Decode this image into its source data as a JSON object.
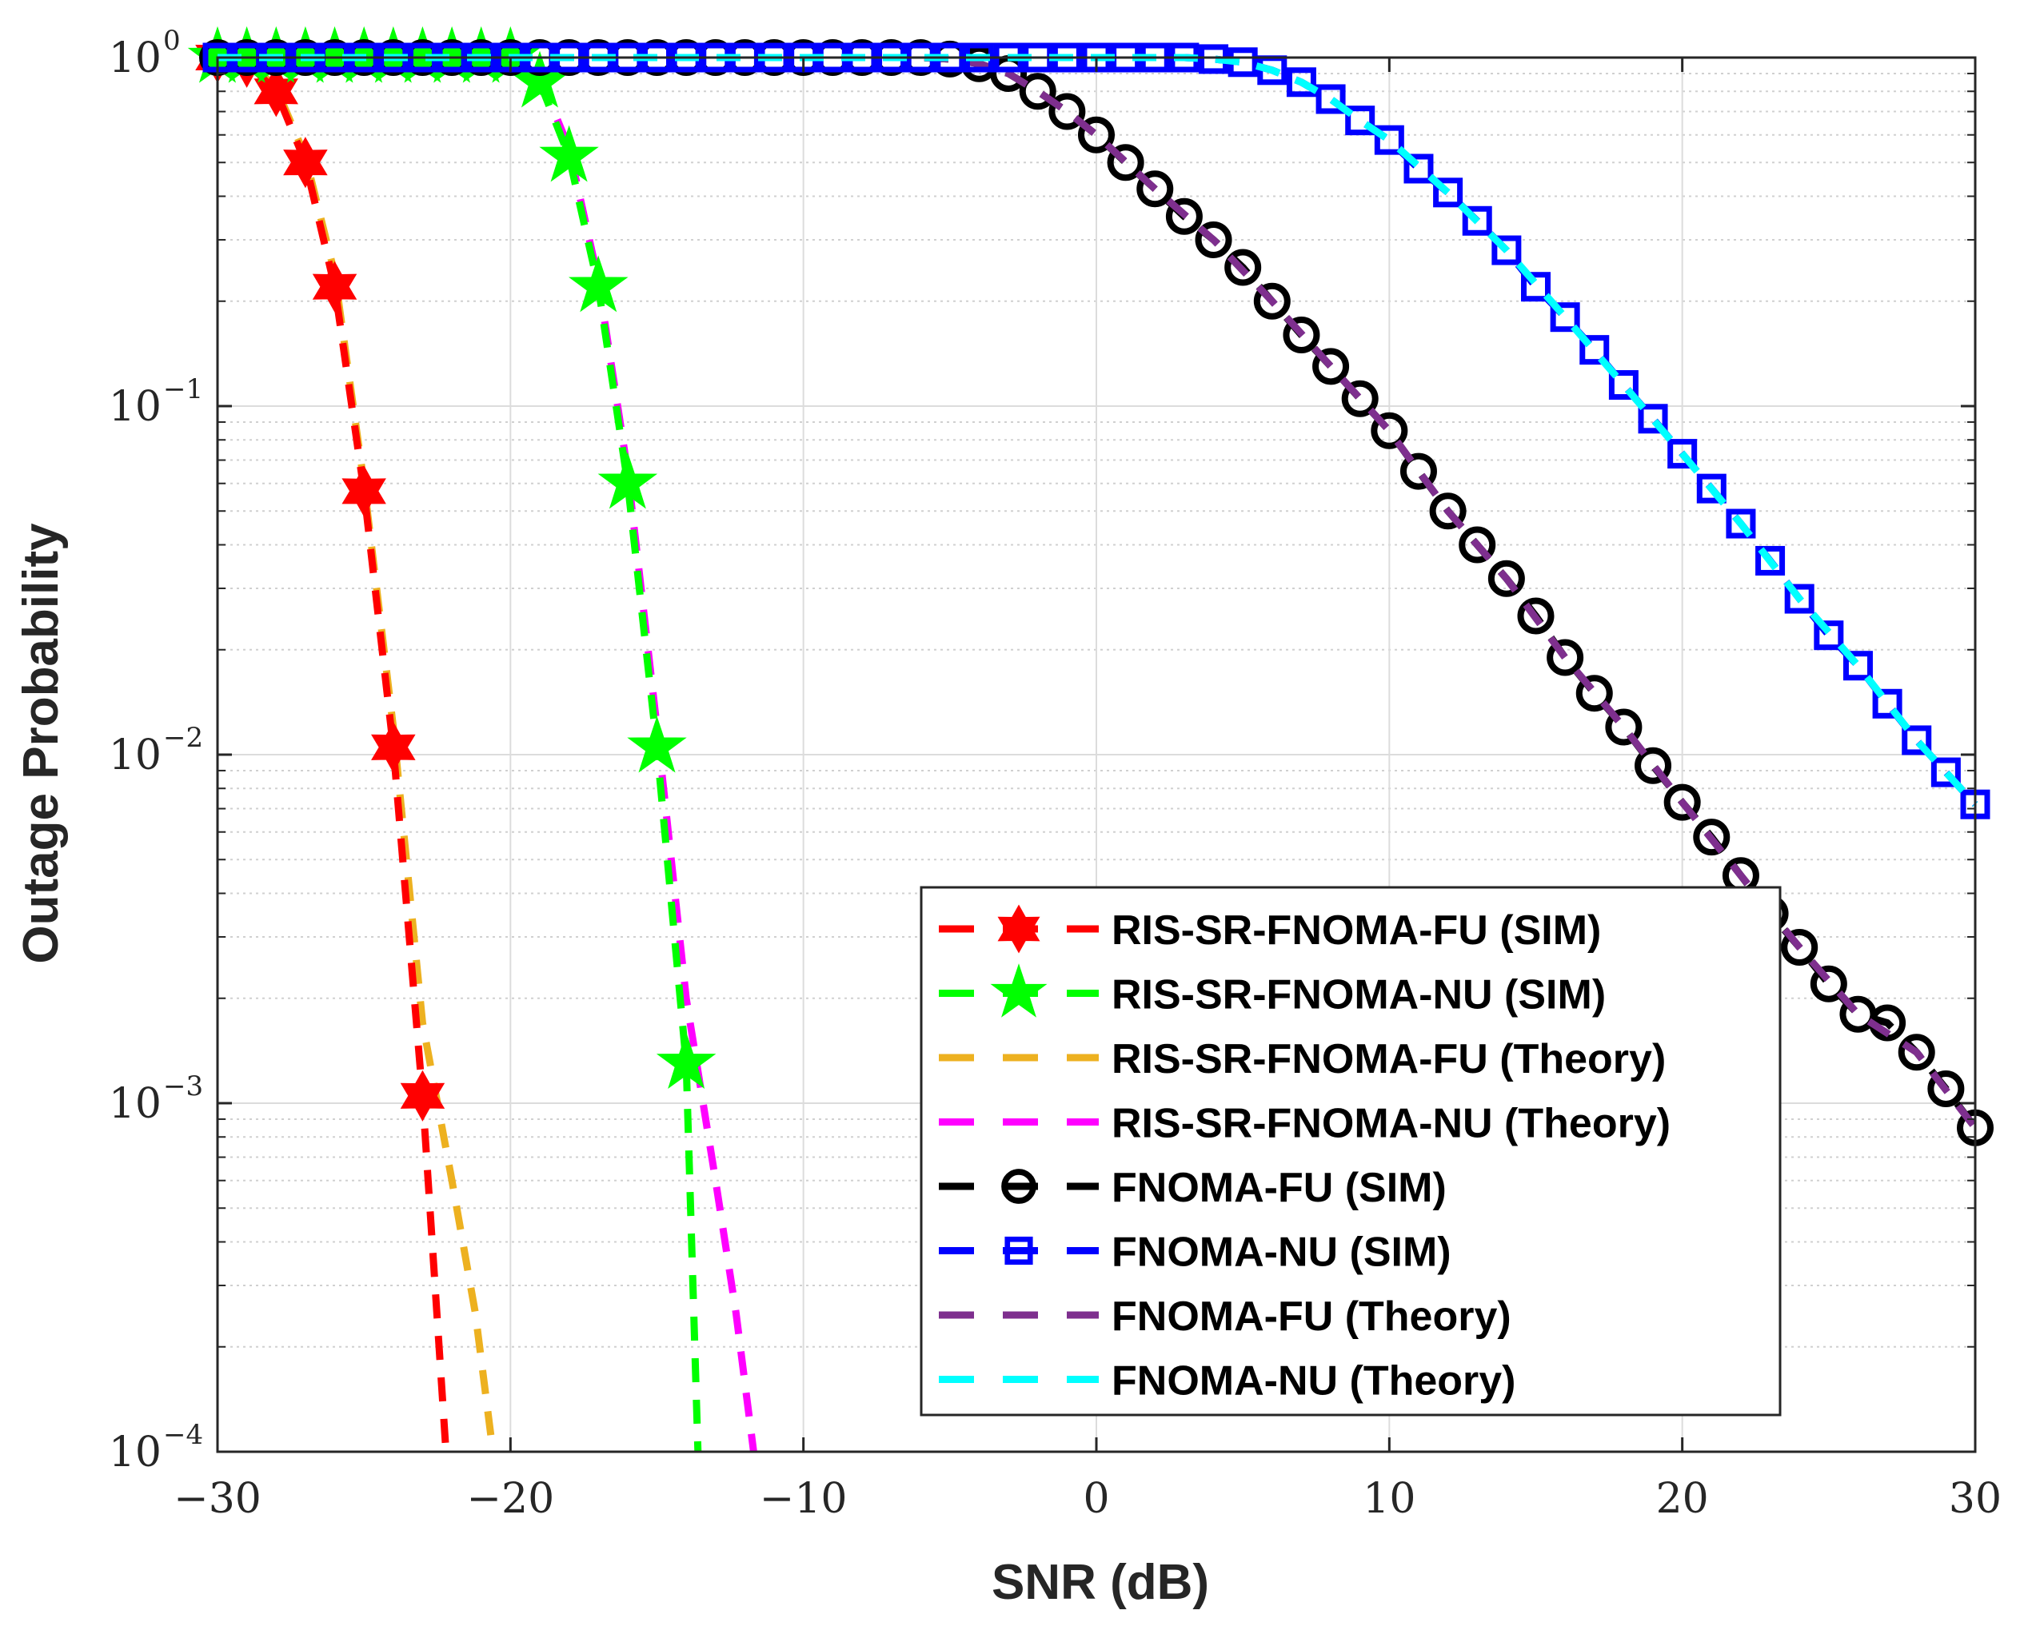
{
  "chart_data": {
    "type": "line",
    "xlabel": "SNR (dB)",
    "ylabel": "Outage Probability",
    "xlim": [
      -30,
      30
    ],
    "ylim": [
      0.0001,
      1
    ],
    "yscale": "log",
    "grid": true,
    "legend_position": "bottom-center-right",
    "x_ticks": [
      -30,
      -20,
      -10,
      0,
      10,
      20,
      30
    ],
    "x_tick_labels": [
      "−30",
      "−20",
      "−10",
      "0",
      "10",
      "20",
      "30"
    ],
    "y_ticks": [
      1,
      0.1,
      0.01,
      0.001,
      0.0001
    ],
    "y_tick_bases": [
      "10",
      "10",
      "10",
      "10",
      "10"
    ],
    "y_tick_exponents": [
      "0",
      "−1",
      "−2",
      "−3",
      "−4"
    ],
    "series": [
      {
        "name": "RIS-SR-FNOMA-FU (SIM)",
        "color": "#ff0000",
        "line": "dashed",
        "marker": "hexagram",
        "x": [
          -30,
          -29,
          -28,
          -27,
          -26,
          -25,
          -24,
          -23,
          -22.2
        ],
        "y": [
          1,
          0.97,
          0.8,
          0.5,
          0.22,
          0.057,
          0.0105,
          0.00105,
          0.0001
        ]
      },
      {
        "name": "RIS-SR-FNOMA-NU (SIM)",
        "color": "#00ff00",
        "line": "dashed",
        "marker": "pentagram",
        "x": [
          -30,
          -29,
          -28,
          -27,
          -26,
          -25,
          -24,
          -23,
          -22,
          -21,
          -20,
          -19,
          -18,
          -17,
          -16,
          -15,
          -14,
          -13.6
        ],
        "y": [
          1,
          1,
          1,
          1,
          1,
          1,
          1,
          1,
          1,
          1,
          1,
          0.85,
          0.52,
          0.22,
          0.06,
          0.0105,
          0.0013,
          0.0001
        ]
      },
      {
        "name": "RIS-SR-FNOMA-FU (Theory)",
        "color": "#edb120",
        "line": "dashed",
        "marker": "none",
        "x": [
          -30,
          -29,
          -28,
          -27,
          -26,
          -25,
          -24,
          -23,
          -22,
          -21.2,
          -20.6
        ],
        "y": [
          1,
          0.98,
          0.82,
          0.52,
          0.24,
          0.06,
          0.012,
          0.0017,
          0.0006,
          0.00025,
          0.0001
        ]
      },
      {
        "name": "RIS-SR-FNOMA-NU (Theory)",
        "color": "#ff00ff",
        "line": "dashed",
        "marker": "none",
        "x": [
          -30,
          -20,
          -19,
          -18,
          -17,
          -16,
          -15,
          -14,
          -13,
          -12.3,
          -11.7
        ],
        "y": [
          1,
          1,
          0.88,
          0.55,
          0.23,
          0.065,
          0.012,
          0.002,
          0.0006,
          0.00025,
          0.0001
        ]
      },
      {
        "name": "FNOMA-FU (SIM)",
        "color": "#000000",
        "line": "dashed",
        "marker": "circle",
        "x": [
          -30,
          -29,
          -28,
          -27,
          -26,
          -25,
          -24,
          -23,
          -22,
          -21,
          -20,
          -19,
          -18,
          -17,
          -16,
          -15,
          -14,
          -13,
          -12,
          -11,
          -10,
          -9,
          -8,
          -7,
          -6,
          -5,
          -4,
          -3,
          -2,
          -1,
          0,
          1,
          2,
          3,
          4,
          5,
          6,
          7,
          8,
          9,
          10,
          11,
          12,
          13,
          14,
          15,
          16,
          17,
          18,
          19,
          20,
          21,
          22,
          23,
          24,
          25,
          26,
          27,
          28,
          29,
          30
        ],
        "y": [
          1,
          1,
          1,
          1,
          1,
          1,
          1,
          1,
          1,
          1,
          1,
          1,
          1,
          1,
          1,
          1,
          1,
          1,
          1,
          1,
          1,
          1,
          1,
          1,
          1,
          0.99,
          0.96,
          0.9,
          0.8,
          0.7,
          0.6,
          0.5,
          0.42,
          0.35,
          0.3,
          0.25,
          0.2,
          0.16,
          0.13,
          0.105,
          0.085,
          0.065,
          0.05,
          0.04,
          0.032,
          0.025,
          0.019,
          0.015,
          0.012,
          0.0093,
          0.0073,
          0.0058,
          0.0045,
          0.0035,
          0.0028,
          0.0022,
          0.0018,
          0.0017,
          0.0014,
          0.0011,
          0.00085
        ]
      },
      {
        "name": "FNOMA-NU (SIM)",
        "color": "#0000ff",
        "line": "dashed",
        "marker": "square",
        "x": [
          -30,
          -29,
          -28,
          -27,
          -26,
          -25,
          -24,
          -23,
          -22,
          -21,
          -20,
          -19,
          -18,
          -17,
          -16,
          -15,
          -14,
          -13,
          -12,
          -11,
          -10,
          -9,
          -8,
          -7,
          -6,
          -5,
          -4,
          -3,
          -2,
          -1,
          0,
          1,
          2,
          3,
          4,
          5,
          6,
          7,
          8,
          9,
          10,
          11,
          12,
          13,
          14,
          15,
          16,
          17,
          18,
          19,
          20,
          21,
          22,
          23,
          24,
          25,
          26,
          27,
          28,
          29,
          30
        ],
        "y": [
          1,
          1,
          1,
          1,
          1,
          1,
          1,
          1,
          1,
          1,
          1,
          1,
          1,
          1,
          1,
          1,
          1,
          1,
          1,
          1,
          1,
          1,
          1,
          1,
          1,
          1,
          1,
          1,
          1,
          1,
          1,
          1,
          1,
          1,
          0.99,
          0.97,
          0.92,
          0.85,
          0.76,
          0.66,
          0.58,
          0.48,
          0.41,
          0.34,
          0.28,
          0.22,
          0.18,
          0.145,
          0.115,
          0.092,
          0.073,
          0.058,
          0.046,
          0.036,
          0.028,
          0.022,
          0.018,
          0.014,
          0.011,
          0.0089,
          0.0072
        ]
      },
      {
        "name": "FNOMA-FU (Theory)",
        "color": "#7e2f8e",
        "line": "dashed",
        "marker": "none",
        "x": [
          -30,
          -6,
          -5,
          -4,
          -3,
          -2,
          -1,
          0,
          2,
          4,
          6,
          8,
          10,
          12,
          14,
          16,
          18,
          20,
          22,
          24,
          26,
          28,
          30
        ],
        "y": [
          1,
          1,
          0.99,
          0.96,
          0.9,
          0.8,
          0.7,
          0.6,
          0.42,
          0.3,
          0.2,
          0.13,
          0.085,
          0.05,
          0.032,
          0.019,
          0.012,
          0.0073,
          0.0045,
          0.0028,
          0.0018,
          0.0014,
          0.00085
        ]
      },
      {
        "name": "FNOMA-NU (Theory)",
        "color": "#00ffff",
        "line": "dashed",
        "marker": "none",
        "x": [
          -30,
          3,
          4,
          5,
          6,
          7,
          8,
          9,
          10,
          12,
          14,
          16,
          18,
          20,
          22,
          24,
          26,
          28,
          30
        ],
        "y": [
          1,
          1,
          0.99,
          0.97,
          0.92,
          0.85,
          0.76,
          0.66,
          0.58,
          0.41,
          0.28,
          0.18,
          0.115,
          0.073,
          0.046,
          0.028,
          0.018,
          0.011,
          0.0072
        ]
      }
    ]
  }
}
